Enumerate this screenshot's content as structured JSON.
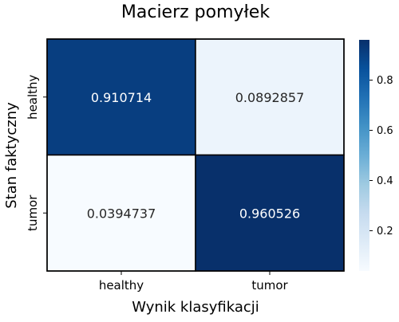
{
  "chart_data": {
    "type": "heatmap",
    "title": "Macierz pomyłek",
    "xlabel": "Wynik klasyfikacji",
    "ylabel": "Stan faktyczny",
    "x_categories": [
      "healthy",
      "tumor"
    ],
    "y_categories": [
      "healthy",
      "tumor"
    ],
    "values": [
      [
        0.910714,
        0.0892857
      ],
      [
        0.0394737,
        0.960526
      ]
    ],
    "cell_labels": [
      [
        "0.910714",
        "0.0892857"
      ],
      [
        "0.0394737",
        "0.960526"
      ]
    ],
    "colorbar": {
      "range": [
        0.0394737,
        0.960526
      ],
      "ticks": [
        0.2,
        0.4,
        0.6,
        0.8
      ],
      "tick_labels": [
        "0.2",
        "0.4",
        "0.6",
        "0.8"
      ],
      "colormap": "Blues"
    },
    "colors": {
      "low": "#f7fbff",
      "high": "#08306b",
      "grid_line": "#000000",
      "text_dark_bg": "#ffffff",
      "text_light_bg": "#262626"
    }
  }
}
